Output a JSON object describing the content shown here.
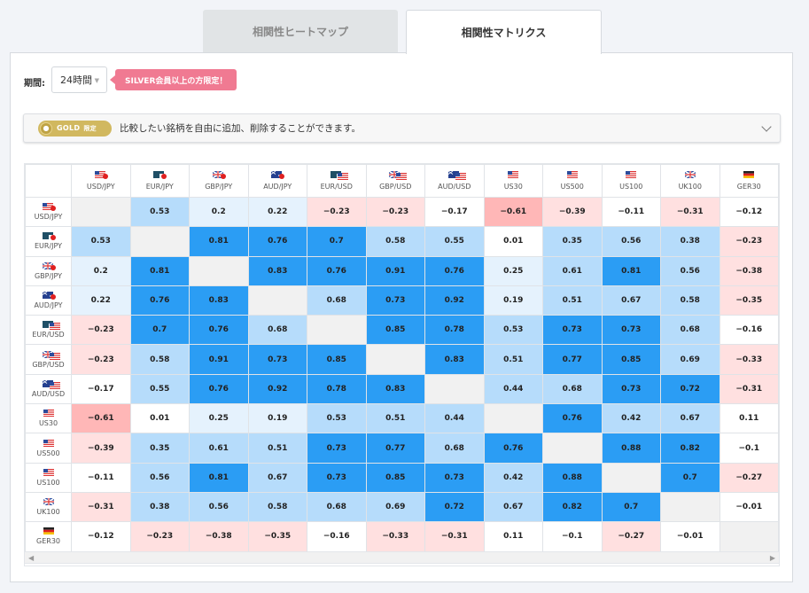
{
  "tabs": [
    {
      "label": "相関性ヒートマップ"
    },
    {
      "label": "相関性マトリクス"
    }
  ],
  "period": {
    "label": "期間:",
    "value": "24時間"
  },
  "silver_badge": "SILVER会員以上の方限定！",
  "gold": {
    "badge": "GOLD",
    "badge_suffix": "限定",
    "description": "比較したい銘柄を自由に追加、削除することができます。"
  },
  "colors": {
    "strong_positive": "#2b9df4",
    "positive": "#b6dcfb",
    "weak_positive": "#e5f2fd",
    "weak_negative": "#ffe0e0",
    "negative": "#ffb7b7",
    "diagonal": "#f1f1f1"
  },
  "symbols": [
    "USD/JPY",
    "EUR/JPY",
    "GBP/JPY",
    "AUD/JPY",
    "EUR/USD",
    "GBP/USD",
    "AUD/USD",
    "US30",
    "US500",
    "US100",
    "UK100",
    "GER30"
  ],
  "flags": [
    "us-jp",
    "eu-jp",
    "gb-jp",
    "au-jp",
    "eu-us",
    "gb-us",
    "au-us",
    "us",
    "us",
    "us",
    "gb",
    "de"
  ],
  "matrix": [
    [
      null,
      "0.53",
      "0.2",
      "0.22",
      "−0.23",
      "−0.23",
      "−0.17",
      "−0.61",
      "−0.39",
      "−0.11",
      "−0.31",
      "−0.12"
    ],
    [
      "0.53",
      null,
      "0.81",
      "0.76",
      "0.7",
      "0.58",
      "0.55",
      "0.01",
      "0.35",
      "0.56",
      "0.38",
      "−0.23"
    ],
    [
      "0.2",
      "0.81",
      null,
      "0.83",
      "0.76",
      "0.91",
      "0.76",
      "0.25",
      "0.61",
      "0.81",
      "0.56",
      "−0.38"
    ],
    [
      "0.22",
      "0.76",
      "0.83",
      null,
      "0.68",
      "0.73",
      "0.92",
      "0.19",
      "0.51",
      "0.67",
      "0.58",
      "−0.35"
    ],
    [
      "−0.23",
      "0.7",
      "0.76",
      "0.68",
      null,
      "0.85",
      "0.78",
      "0.53",
      "0.73",
      "0.73",
      "0.68",
      "−0.16"
    ],
    [
      "−0.23",
      "0.58",
      "0.91",
      "0.73",
      "0.85",
      null,
      "0.83",
      "0.51",
      "0.77",
      "0.85",
      "0.69",
      "−0.33"
    ],
    [
      "−0.17",
      "0.55",
      "0.76",
      "0.92",
      "0.78",
      "0.83",
      null,
      "0.44",
      "0.68",
      "0.73",
      "0.72",
      "−0.31"
    ],
    [
      "−0.61",
      "0.01",
      "0.25",
      "0.19",
      "0.53",
      "0.51",
      "0.44",
      null,
      "0.76",
      "0.42",
      "0.67",
      "0.11"
    ],
    [
      "−0.39",
      "0.35",
      "0.61",
      "0.51",
      "0.73",
      "0.77",
      "0.68",
      "0.76",
      null,
      "0.88",
      "0.82",
      "−0.1"
    ],
    [
      "−0.11",
      "0.56",
      "0.81",
      "0.67",
      "0.73",
      "0.85",
      "0.73",
      "0.42",
      "0.88",
      null,
      "0.7",
      "−0.27"
    ],
    [
      "−0.31",
      "0.38",
      "0.56",
      "0.58",
      "0.68",
      "0.69",
      "0.72",
      "0.67",
      "0.82",
      "0.7",
      null,
      "−0.01"
    ],
    [
      "−0.12",
      "−0.23",
      "−0.38",
      "−0.35",
      "−0.16",
      "−0.33",
      "−0.31",
      "0.11",
      "−0.1",
      "−0.27",
      "−0.01",
      null
    ]
  ]
}
